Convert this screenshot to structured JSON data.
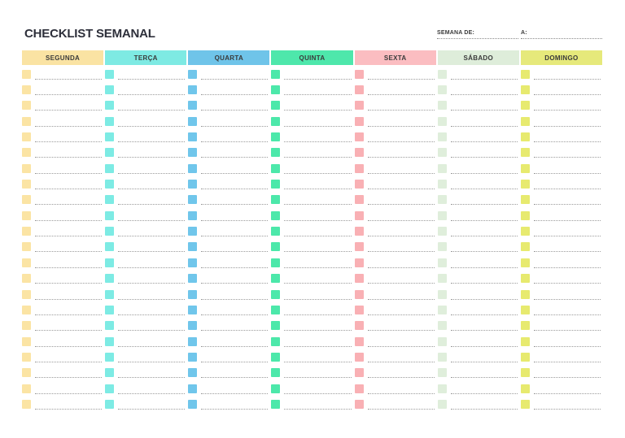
{
  "page": {
    "title": "CHECKLIST SEMANAL"
  },
  "week_fields": {
    "from_label": "SEMANA DE:",
    "to_label": "A:"
  },
  "days": [
    {
      "id": "segunda",
      "label": "SEGUNDA",
      "header_color": "#FAE3A3",
      "check_color": "#FBE4A4"
    },
    {
      "id": "terca",
      "label": "TERÇA",
      "header_color": "#7EEAE3",
      "check_color": "#7DEBE4"
    },
    {
      "id": "quarta",
      "label": "QUARTA",
      "header_color": "#6FC4E9",
      "check_color": "#70C6EB"
    },
    {
      "id": "quinta",
      "label": "QUINTA",
      "header_color": "#4EE7AB",
      "check_color": "#4CE8AA"
    },
    {
      "id": "sexta",
      "label": "SEXTA",
      "header_color": "#FBBDC1",
      "check_color": "#F9B0B4"
    },
    {
      "id": "sabado",
      "label": "SÁBADO",
      "header_color": "#DEEDDA",
      "check_color": "#DFEEDB"
    },
    {
      "id": "domingo",
      "label": "DOMINGO",
      "header_color": "#E6E97B",
      "check_color": "#E7EA6F"
    }
  ],
  "rows_per_day": 22,
  "colors": {
    "title_text": "#2d2f3a",
    "header_text": "#3a3a3a",
    "task_line": "#9b9b9b",
    "field_line": "#8a8a8a",
    "background": "#ffffff"
  }
}
